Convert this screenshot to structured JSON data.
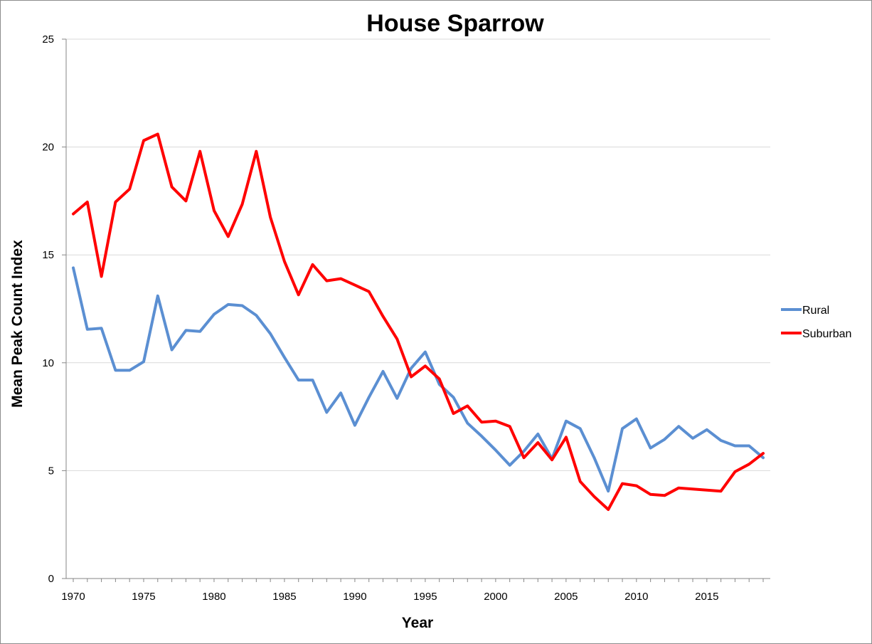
{
  "chart_data": {
    "type": "line",
    "title": "House Sparrow",
    "xlabel": "Year",
    "ylabel": "Mean Peak Count Index",
    "xlim": [
      1970,
      2019
    ],
    "ylim": [
      0,
      25
    ],
    "x_ticks": [
      1970,
      1975,
      1980,
      1985,
      1990,
      1995,
      2000,
      2005,
      2010,
      2015
    ],
    "y_ticks": [
      0,
      5,
      10,
      15,
      20,
      25
    ],
    "grid": "horizontal",
    "legend_position": "right",
    "x": [
      1970,
      1971,
      1972,
      1973,
      1974,
      1975,
      1976,
      1977,
      1978,
      1979,
      1980,
      1981,
      1982,
      1983,
      1984,
      1985,
      1986,
      1987,
      1988,
      1989,
      1990,
      1991,
      1992,
      1993,
      1994,
      1995,
      1996,
      1997,
      1998,
      1999,
      2000,
      2001,
      2002,
      2003,
      2004,
      2005,
      2006,
      2007,
      2008,
      2009,
      2010,
      2011,
      2012,
      2013,
      2014,
      2015,
      2016,
      2017,
      2018,
      2019
    ],
    "series": [
      {
        "name": "Rural",
        "color": "#5b8fd2",
        "values": [
          14.4,
          11.55,
          11.6,
          9.65,
          9.65,
          10.05,
          13.1,
          10.6,
          11.5,
          11.45,
          12.25,
          12.7,
          12.65,
          12.2,
          11.35,
          10.25,
          9.2,
          9.2,
          7.7,
          8.6,
          7.1,
          8.4,
          9.6,
          8.35,
          9.75,
          10.5,
          9.0,
          8.4,
          7.2,
          6.6,
          5.95,
          5.25,
          5.9,
          6.7,
          5.55,
          7.3,
          6.95,
          5.6,
          4.05,
          6.95,
          7.4,
          6.05,
          6.45,
          7.05,
          6.5,
          6.9,
          6.4,
          6.15,
          6.15,
          5.6
        ]
      },
      {
        "name": "Suburban",
        "color": "#ff0000",
        "values": [
          16.9,
          17.45,
          14.0,
          17.45,
          18.05,
          20.3,
          20.6,
          18.15,
          17.5,
          19.8,
          17.05,
          15.85,
          17.35,
          19.8,
          16.75,
          14.7,
          13.15,
          14.55,
          13.8,
          13.9,
          13.6,
          13.3,
          12.15,
          11.1,
          9.35,
          9.85,
          9.25,
          7.65,
          8.0,
          7.25,
          7.3,
          7.05,
          5.6,
          6.3,
          5.5,
          6.55,
          4.5,
          3.8,
          3.2,
          4.4,
          4.3,
          3.9,
          3.85,
          4.2,
          4.15,
          4.1,
          4.05,
          4.95,
          5.3,
          5.8
        ]
      }
    ]
  }
}
